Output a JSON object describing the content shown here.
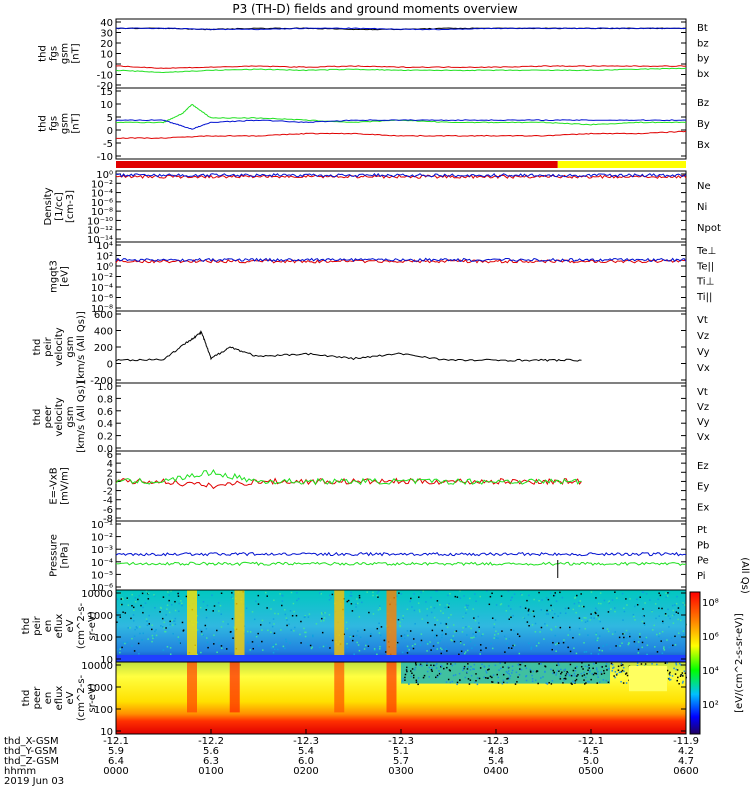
{
  "title": "P3 (TH-D) fields and ground moments overview",
  "colors": {
    "black": "#000000",
    "red": "#e00000",
    "green": "#20e020",
    "blue": "#0010d0",
    "yellow": "#ffff00"
  },
  "panels": [
    {
      "id": "fgs_gsm",
      "ylabel": [
        "thd",
        "fgs",
        "gsm",
        "[nT]"
      ],
      "yticks": [
        "40",
        "30",
        "20",
        "10",
        "0",
        "-10",
        "-20"
      ],
      "legend": [
        {
          "text": "Bt",
          "color": "black"
        },
        {
          "text": "bz",
          "color": "red"
        },
        {
          "text": "by",
          "color": "green"
        },
        {
          "text": "bx",
          "color": "blue"
        }
      ]
    },
    {
      "id": "fgs_dsl",
      "ylabel": [
        "thd",
        "fgs",
        "gsm",
        "[nT]"
      ],
      "yticks": [
        "15",
        "10",
        "5",
        "0",
        "-5",
        "-10"
      ],
      "legend": [
        {
          "text": "Bz",
          "color": "red"
        },
        {
          "text": "By",
          "color": "green"
        },
        {
          "text": "Bx",
          "color": "blue"
        }
      ]
    },
    {
      "id": "density",
      "ylabel": [
        "Density",
        "[1/cc]",
        "[cm-3]"
      ],
      "yticks": [
        "10⁰",
        "10⁻²",
        "10⁻⁴",
        "10⁻⁶",
        "10⁻⁸",
        "10⁻¹⁰",
        "10⁻¹²",
        "10⁻¹⁴"
      ],
      "legend": [
        {
          "text": "Ne",
          "color": "red"
        },
        {
          "text": "Ni",
          "color": "black"
        },
        {
          "text": "Npot",
          "color": "blue"
        }
      ]
    },
    {
      "id": "temp",
      "ylabel": [
        "mgqt3",
        "[eV]"
      ],
      "yticks": [
        "10⁴",
        "10²",
        "10⁰",
        "10⁻²",
        "10⁻⁴",
        "10⁻⁶",
        "10⁻⁸"
      ],
      "legend": [
        {
          "text": "Te⊥",
          "color": "red"
        },
        {
          "text": "Te||",
          "color": "black"
        },
        {
          "text": "Ti⊥",
          "color": "red"
        },
        {
          "text": "Ti||",
          "color": "green"
        }
      ]
    },
    {
      "id": "peir_vel",
      "ylabel": [
        "thd",
        "peir",
        "velocity",
        "gsm",
        "[km/s (All Qs)]"
      ],
      "yticks": [
        "600",
        "400",
        "200",
        "0",
        "-200"
      ],
      "legend": [
        {
          "text": "Vt",
          "color": "black"
        },
        {
          "text": "Vz",
          "color": "red"
        },
        {
          "text": "Vy",
          "color": "green"
        },
        {
          "text": "Vx",
          "color": "blue"
        }
      ]
    },
    {
      "id": "peer_vel",
      "ylabel": [
        "thd",
        "peer",
        "velocity",
        "gsm",
        "[km/s (All Qs)]"
      ],
      "yticks": [
        "1.0",
        "0.8",
        "0.6",
        "0.4",
        "0.2",
        "0.0"
      ],
      "legend": [
        {
          "text": "Vt",
          "color": "black"
        },
        {
          "text": "Vz",
          "color": "red"
        },
        {
          "text": "Vy",
          "color": "green"
        },
        {
          "text": "Vx",
          "color": "blue"
        }
      ]
    },
    {
      "id": "efield",
      "ylabel": [
        "E=-VxB",
        "[mV/m]"
      ],
      "yticks": [
        "6",
        "4",
        "2",
        "0",
        "-2",
        "-4",
        "-6",
        "-8"
      ],
      "legend": [
        {
          "text": "Ez",
          "color": "red"
        },
        {
          "text": "Ey",
          "color": "green"
        },
        {
          "text": "Ex",
          "color": "blue"
        }
      ]
    },
    {
      "id": "pressure",
      "ylabel": [
        "Pressure",
        "[nPa]"
      ],
      "yticks": [
        "10⁻¹",
        "10⁻²",
        "10⁻³",
        "10⁻⁴",
        "10⁻⁵",
        "10⁻⁶"
      ],
      "legend": [
        {
          "text": "Pt",
          "color": "black"
        },
        {
          "text": "Pb",
          "color": "red"
        },
        {
          "text": "Pe",
          "color": "green"
        },
        {
          "text": "Pi",
          "color": "blue"
        }
      ],
      "side_note": "(All Qs)"
    },
    {
      "id": "peir_spec",
      "ylabel": [
        "thd",
        "peir",
        "en",
        "eflux",
        "eV",
        "(cm^2-s-",
        "sr-eV)"
      ],
      "yticks": [
        "10000",
        "1000",
        "100",
        "10"
      ]
    },
    {
      "id": "peer_spec",
      "ylabel": [
        "thd",
        "peer",
        "en",
        "eflux",
        "eV",
        "(cm^2-s-",
        "sr-eV)"
      ],
      "yticks": [
        "10000",
        "1000",
        "100",
        "10"
      ]
    }
  ],
  "colorbar": {
    "ticks": [
      "10⁸",
      "10⁶",
      "10⁴",
      "10²"
    ],
    "label": "[eV/(cm^2-s-sr-eV)]"
  },
  "footer": {
    "rows": [
      {
        "label": "thd_X-GSM",
        "values": [
          "-12.1",
          "-12.2",
          "-12.3",
          "-12.3",
          "-12.3",
          "-12.1",
          "-11.9"
        ]
      },
      {
        "label": "thd_Y-GSM",
        "values": [
          "5.9",
          "5.6",
          "5.4",
          "5.1",
          "4.8",
          "4.5",
          "4.2"
        ]
      },
      {
        "label": "thd_Z-GSM",
        "values": [
          "6.4",
          "6.3",
          "6.0",
          "5.7",
          "5.4",
          "5.0",
          "4.7"
        ]
      },
      {
        "label": "hhmm",
        "values": [
          "0000",
          "0100",
          "0200",
          "0300",
          "0400",
          "0500",
          "0600"
        ]
      }
    ],
    "date": "2019 Jun 03"
  },
  "chart_data": {
    "type": "line",
    "title": "P3 (TH-D) fields and ground moments overview",
    "xlabel": "hhmm",
    "x_ticks": [
      "0000",
      "0100",
      "0200",
      "0300",
      "0400",
      "0500",
      "0600"
    ],
    "xlim_hours": [
      0,
      6
    ],
    "panels": [
      {
        "id": "fgs_gsm",
        "ylim": [
          -20,
          40
        ],
        "series": [
          {
            "name": "Bt",
            "color": "black",
            "x": [
              0,
              0.5,
              0.9,
              1.0,
              1.5,
              2.0,
              2.5,
              3.0,
              3.5,
              4.0,
              4.5,
              5.0,
              5.5,
              6.0
            ],
            "y": [
              34,
              34,
              33,
              33,
              34,
              34,
              33,
              33,
              34,
              34,
              34,
              34,
              34,
              34
            ]
          },
          {
            "name": "bz",
            "color": "red",
            "x": [
              0,
              0.5,
              1.0,
              1.5,
              2.0,
              2.5,
              3.0,
              3.5,
              4.0,
              4.5,
              5.0,
              5.5,
              6.0
            ],
            "y": [
              -2,
              -4,
              -3,
              -2,
              -3,
              -2,
              -3,
              -3,
              -3,
              -2,
              -2,
              -2,
              -2
            ]
          },
          {
            "name": "by",
            "color": "green",
            "x": [
              0,
              0.5,
              1.0,
              1.5,
              2.0,
              2.5,
              3.0,
              3.5,
              4.0,
              4.5,
              5.0,
              5.5,
              6.0
            ],
            "y": [
              -6,
              -8,
              -6,
              -5,
              -6,
              -5,
              -6,
              -6,
              -6,
              -6,
              -6,
              -5,
              -4
            ]
          },
          {
            "name": "bx",
            "color": "blue",
            "x": [
              0,
              0.5,
              1.0,
              1.5,
              2.0,
              2.5,
              3.0,
              3.5,
              4.0,
              4.5,
              5.0,
              5.5,
              6.0
            ],
            "y": [
              34,
              34,
              33,
              33,
              34,
              34,
              33,
              33,
              34,
              34,
              34,
              34,
              34
            ]
          }
        ]
      },
      {
        "id": "fgs_dsl",
        "ylim": [
          -14,
          15
        ],
        "series": [
          {
            "name": "Bz",
            "color": "red",
            "x": [
              0,
              0.5,
              1.0,
              1.5,
              2.0,
              2.5,
              3.0,
              3.5,
              4.0,
              4.5,
              5.0,
              5.5,
              6.0
            ],
            "y": [
              -6,
              -6,
              -5,
              -5,
              -4,
              -4,
              -5,
              -5,
              -5,
              -5,
              -4,
              -4,
              -3
            ]
          },
          {
            "name": "By",
            "color": "green",
            "x": [
              0,
              0.5,
              0.7,
              0.8,
              1.0,
              1.5,
              2.0,
              2.5,
              3.0,
              3.5,
              4.0,
              4.5,
              5.0,
              5.5,
              6.0
            ],
            "y": [
              1,
              1,
              5,
              9,
              3,
              3,
              2,
              1,
              2,
              1,
              1,
              1,
              0,
              1,
              1
            ]
          },
          {
            "name": "Bx",
            "color": "blue",
            "x": [
              0,
              0.5,
              0.8,
              1.0,
              1.5,
              2.0,
              2.5,
              3.0,
              3.5,
              4.0,
              4.5,
              5.0,
              5.5,
              6.0
            ],
            "y": [
              2,
              2,
              -2,
              1,
              2,
              1,
              2,
              2,
              2,
              2,
              2,
              2,
              2,
              2
            ]
          }
        ]
      },
      {
        "id": "peir_vel",
        "ylim": [
          -200,
          600
        ],
        "series": [
          {
            "name": "Vt",
            "color": "black",
            "x": [
              0,
              0.5,
              0.8,
              0.9,
              1.0,
              1.2,
              1.5,
              2.0,
              2.5,
              3.0,
              3.5,
              4.0,
              4.5,
              4.9
            ],
            "y": [
              40,
              50,
              300,
              380,
              60,
              200,
              80,
              120,
              60,
              120,
              40,
              40,
              40,
              40
            ]
          }
        ]
      },
      {
        "id": "efield",
        "ylim": [
          -8,
          6
        ],
        "series": [
          {
            "name": "Ez",
            "color": "red",
            "x": [
              0,
              0.5,
              1.0,
              1.5,
              2.0,
              2.5,
              3.0,
              3.5,
              4.0,
              4.5,
              4.9
            ],
            "y": [
              0,
              0,
              -1,
              0,
              0,
              0,
              0,
              0,
              0,
              0,
              0
            ]
          },
          {
            "name": "Ey",
            "color": "green",
            "x": [
              0,
              0.5,
              1.0,
              1.5,
              2.0,
              2.5,
              3.0,
              3.5,
              4.0,
              4.5,
              4.9
            ],
            "y": [
              0,
              0,
              2,
              0,
              0,
              0,
              0,
              0,
              0,
              0,
              0
            ]
          }
        ]
      }
    ]
  }
}
